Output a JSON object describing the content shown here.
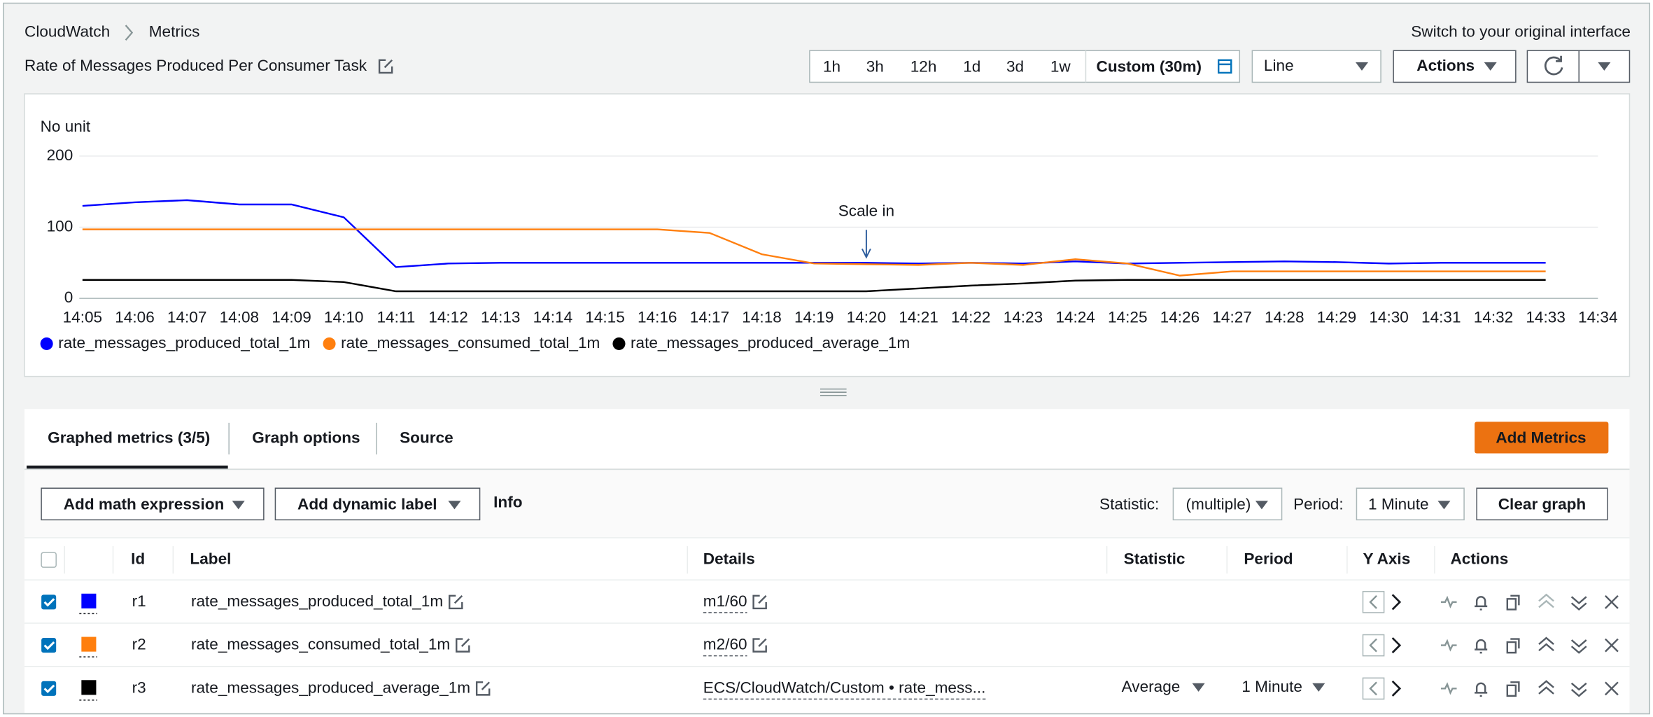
{
  "breadcrumb": [
    "CloudWatch",
    "Metrics"
  ],
  "switch_link": "Switch to your original interface",
  "title": "Rate of Messages Produced Per Consumer Task",
  "time_ranges": [
    "1h",
    "3h",
    "12h",
    "1d",
    "3d",
    "1w",
    "Custom (30m)"
  ],
  "graph_type": "Line",
  "actions": "Actions",
  "chart_data": {
    "type": "line",
    "y_label": "No unit",
    "categories": [
      "14:05",
      "14:06",
      "14:07",
      "14:08",
      "14:09",
      "14:10",
      "14:11",
      "14:12",
      "14:13",
      "14:14",
      "14:15",
      "14:16",
      "14:17",
      "14:18",
      "14:19",
      "14:20",
      "14:21",
      "14:22",
      "14:23",
      "14:24",
      "14:25",
      "14:26",
      "14:27",
      "14:28",
      "14:29",
      "14:30",
      "14:31",
      "14:32",
      "14:33",
      "14:34"
    ],
    "series": [
      {
        "name": "rate_messages_produced_total_1m",
        "color": "#0000ff",
        "values": [
          130,
          135,
          138,
          132,
          132,
          114,
          44,
          49,
          50,
          50,
          50,
          50,
          50,
          50,
          50,
          50,
          49,
          50,
          49,
          52,
          49,
          50,
          51,
          52,
          51,
          49,
          50,
          50,
          50,
          null
        ]
      },
      {
        "name": "rate_messages_consumed_total_1m",
        "color": "#ff7f0e",
        "values": [
          97,
          97,
          97,
          97,
          97,
          97,
          97,
          97,
          97,
          97,
          97,
          97,
          92,
          62,
          49,
          48,
          47,
          50,
          47,
          55,
          49,
          32,
          38,
          38,
          38,
          38,
          38,
          38,
          38,
          null
        ]
      },
      {
        "name": "rate_messages_produced_average_1m",
        "color": "#000000",
        "values": [
          26,
          26,
          26,
          26,
          26,
          23,
          10,
          10,
          10,
          10,
          10,
          10,
          10,
          10,
          10,
          10,
          14,
          18,
          21,
          25,
          26,
          26,
          26,
          26,
          26,
          26,
          26,
          26,
          26,
          null
        ]
      }
    ],
    "ylim": [
      0,
      200
    ],
    "yticks": [
      0,
      100,
      200
    ],
    "grid": true,
    "annotations": [
      {
        "text": "Scale in",
        "x": "14:20"
      }
    ]
  },
  "tabs": [
    "Graphed metrics (3/5)",
    "Graph options",
    "Source"
  ],
  "add_metrics": "Add Metrics",
  "toolbar": {
    "math": "Add math expression",
    "dynamic": "Add dynamic label",
    "info": "Info",
    "statistic_label": "Statistic:",
    "statistic": "(multiple)",
    "period_label": "Period:",
    "period": "1 Minute",
    "clear": "Clear graph"
  },
  "table": {
    "headers": [
      "Id",
      "Label",
      "Details",
      "Statistic",
      "Period",
      "Y Axis",
      "Actions"
    ],
    "rows": [
      {
        "id": "r1",
        "label": "rate_messages_produced_total_1m",
        "details": "m1/60"
      },
      {
        "id": "r2",
        "label": "rate_messages_consumed_total_1m",
        "details": "m2/60"
      },
      {
        "id": "r3",
        "label": "rate_messages_produced_average_1m",
        "details": "ECS/CloudWatch/Custom • rate_mess...",
        "statistic": "Average",
        "period": "1 Minute"
      }
    ]
  }
}
